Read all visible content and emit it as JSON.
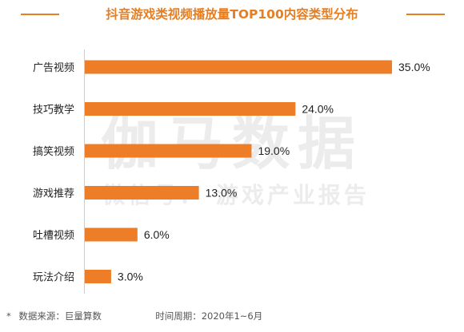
{
  "title": "抖音游戏类视频播放量TOP100内容类型分布",
  "watermark": {
    "main": "伽马数据",
    "sub": "微信号： 游戏产业报告"
  },
  "footnote": {
    "asterisk": "*",
    "source": "数据来源：巨量算数",
    "period": "时间周期：2020年1~6月"
  },
  "colors": {
    "accent": "#e67e22",
    "bar": "#ee7d28"
  },
  "chart_data": {
    "type": "bar",
    "orientation": "horizontal",
    "title": "抖音游戏类视频播放量TOP100内容类型分布",
    "categories": [
      "广告视频",
      "技巧教学",
      "搞笑视频",
      "游戏推荐",
      "吐槽视频",
      "玩法介绍"
    ],
    "values": [
      35.0,
      24.0,
      19.0,
      13.0,
      6.0,
      3.0
    ],
    "value_labels": [
      "35.0%",
      "24.0%",
      "19.0%",
      "13.0%",
      "6.0%",
      "3.0%"
    ],
    "unit": "%",
    "xlim": [
      0,
      35
    ],
    "grid": false,
    "legend": "none"
  }
}
